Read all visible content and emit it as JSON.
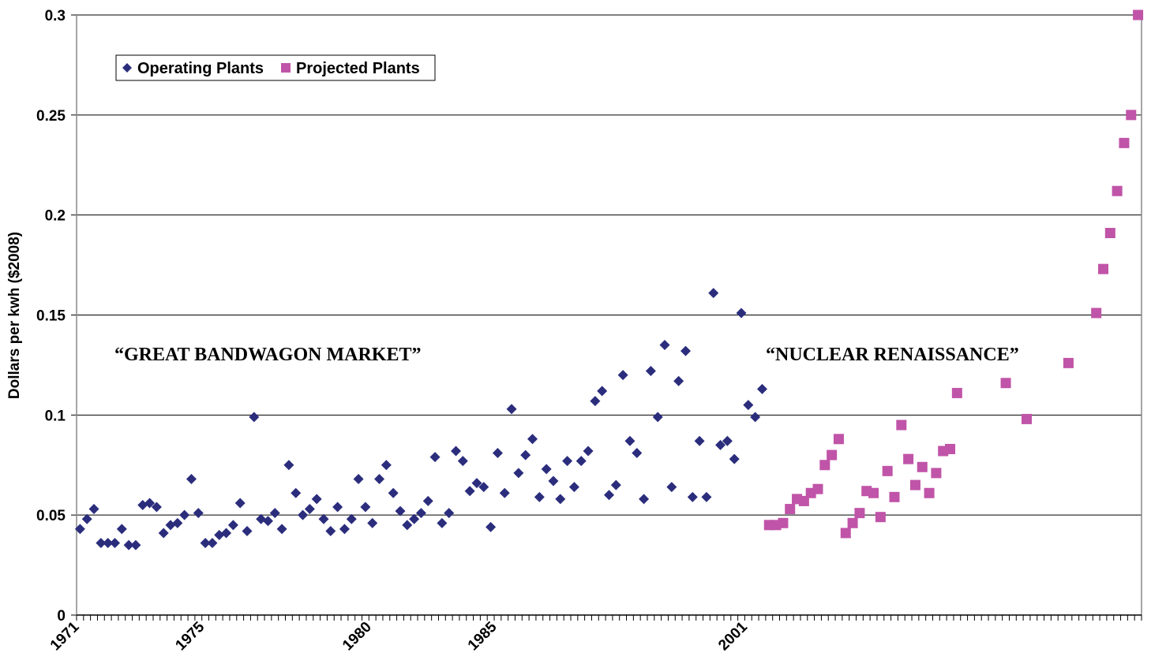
{
  "chart_data": {
    "type": "scatter",
    "title": "",
    "xlabel": "",
    "ylabel": "Dollars per kwh ($2008)",
    "ylim": [
      0,
      0.3
    ],
    "y_ticks": [
      "0",
      "0.05",
      "0.1",
      "0.15",
      "0.2",
      "0.25",
      "0.3"
    ],
    "x_tick_labels": [
      "1971",
      "1975",
      "1980",
      "1985",
      "2001"
    ],
    "grid": true,
    "legend_position": "top-left",
    "annotations": [
      "“GREAT BANDWAGON MARKET”",
      "“NUCLEAR RENAISSANCE”"
    ],
    "series": [
      {
        "name": "Operating Plants",
        "color": "#2b2d7c",
        "marker": "diamond",
        "values": [
          0.043,
          0.048,
          0.053,
          0.036,
          0.036,
          0.036,
          0.043,
          0.035,
          0.035,
          0.055,
          0.056,
          0.054,
          0.041,
          0.045,
          0.046,
          0.05,
          0.068,
          0.051,
          0.036,
          0.036,
          0.04,
          0.041,
          0.045,
          0.056,
          0.042,
          0.099,
          0.048,
          0.047,
          0.051,
          0.043,
          0.075,
          0.061,
          0.05,
          0.053,
          0.058,
          0.048,
          0.042,
          0.054,
          0.043,
          0.048,
          0.068,
          0.054,
          0.046,
          0.068,
          0.075,
          0.061,
          0.052,
          0.045,
          0.048,
          0.051,
          0.057,
          0.079,
          0.046,
          0.051,
          0.082,
          0.077,
          0.062,
          0.066,
          0.064,
          0.044,
          0.081,
          0.061,
          0.103,
          0.071,
          0.08,
          0.088,
          0.059,
          0.073,
          0.067,
          0.058,
          0.077,
          0.064,
          0.077,
          0.082,
          0.107,
          0.112,
          0.06,
          0.065,
          0.12,
          0.087,
          0.081,
          0.058,
          0.122,
          0.099,
          0.135,
          0.064,
          0.117,
          0.132,
          0.059,
          0.087,
          0.059,
          0.161,
          0.085,
          0.087,
          0.078,
          0.151,
          0.105,
          0.099,
          0.113
        ]
      },
      {
        "name": "Projected Plants",
        "color": "#c054a8",
        "marker": "square",
        "values": [
          0.045,
          0.045,
          0.046,
          0.053,
          0.058,
          0.057,
          0.061,
          0.063,
          0.075,
          0.08,
          0.088,
          0.041,
          0.046,
          0.051,
          0.062,
          0.061,
          0.049,
          0.072,
          0.059,
          0.095,
          0.078,
          0.065,
          0.074,
          0.061,
          0.071,
          0.082,
          0.083,
          0.111,
          null,
          null,
          null,
          null,
          null,
          null,
          0.116,
          null,
          null,
          0.098,
          null,
          null,
          null,
          null,
          null,
          0.126,
          null,
          null,
          null,
          0.151,
          0.173,
          0.191,
          0.212,
          0.236,
          0.25,
          0.3
        ]
      }
    ]
  }
}
